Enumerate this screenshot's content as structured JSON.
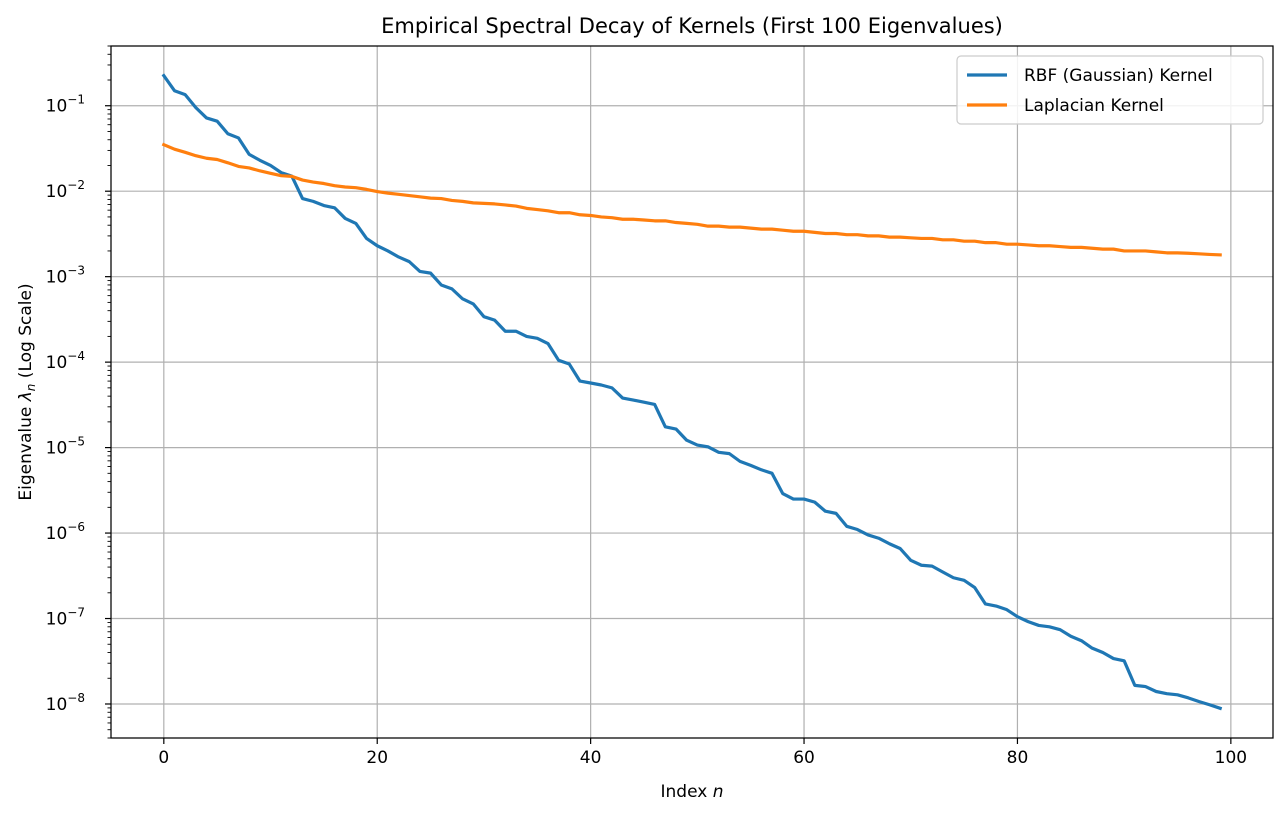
{
  "chart_data": {
    "type": "line",
    "title": "Empirical Spectral Decay of Kernels (First 100 Eigenvalues)",
    "xlabel": "Index n",
    "ylabel": "Eigenvalue λn (Log Scale)",
    "yscale": "log",
    "xlim": [
      -4.95,
      103.95
    ],
    "ylim": [
      4e-09,
      0.5
    ],
    "grid": true,
    "legend_position": "top-right",
    "x_ticks": [
      0,
      20,
      40,
      60,
      80,
      100
    ],
    "x_tick_labels": [
      "0",
      "20",
      "40",
      "60",
      "80",
      "100"
    ],
    "y_tick_exponents": [
      -8,
      -7,
      -6,
      -5,
      -4,
      -3,
      -2,
      -1
    ],
    "y_tick_base": "10",
    "y_tick_labels": [
      "10^-8",
      "10^-7",
      "10^-6",
      "10^-5",
      "10^-4",
      "10^-3",
      "10^-2",
      "10^-1"
    ],
    "series": [
      {
        "name": "RBF (Gaussian) Kernel",
        "color": "#1f77b4",
        "x_start": 0,
        "values": [
          0.225,
          0.15,
          0.135,
          0.095,
          0.072,
          0.066,
          0.047,
          0.042,
          0.027,
          0.023,
          0.02,
          0.0165,
          0.015,
          0.0082,
          0.0076,
          0.0068,
          0.0064,
          0.0048,
          0.0042,
          0.0028,
          0.0023,
          0.002,
          0.0017,
          0.0015,
          0.00115,
          0.0011,
          0.0008,
          0.00072,
          0.00055,
          0.00048,
          0.00034,
          0.00031,
          0.00023,
          0.00023,
          0.0002,
          0.00019,
          0.000165,
          0.000105,
          9.5e-05,
          6e-05,
          5.7e-05,
          5.4e-05,
          5e-05,
          3.8e-05,
          3.6e-05,
          3.4e-05,
          3.2e-05,
          1.75e-05,
          1.65e-05,
          1.22e-05,
          1.07e-05,
          1.02e-05,
          8.8e-06,
          8.5e-06,
          6.9e-06,
          6.2e-06,
          5.5e-06,
          5e-06,
          2.9e-06,
          2.5e-06,
          2.5e-06,
          2.3e-06,
          1.8e-06,
          1.7e-06,
          1.2e-06,
          1.1e-06,
          9.5e-07,
          8.7e-07,
          7.5e-07,
          6.6e-07,
          4.8e-07,
          4.2e-07,
          4.1e-07,
          3.5e-07,
          3e-07,
          2.8e-07,
          2.3e-07,
          1.48e-07,
          1.4e-07,
          1.27e-07,
          1.05e-07,
          9.2e-08,
          8.3e-08,
          8e-08,
          7.4e-08,
          6.2e-08,
          5.5e-08,
          4.5e-08,
          4e-08,
          3.4e-08,
          3.2e-08,
          1.65e-08,
          1.6e-08,
          1.4e-08,
          1.32e-08,
          1.28e-08,
          1.18e-08,
          1.07e-08,
          9.8e-09,
          8.9e-09
        ]
      },
      {
        "name": "Laplacian Kernel",
        "color": "#ff7f0e",
        "x_start": 0,
        "values": [
          0.035,
          0.031,
          0.0285,
          0.026,
          0.0243,
          0.0235,
          0.0215,
          0.0195,
          0.0187,
          0.0173,
          0.0162,
          0.0152,
          0.0149,
          0.0135,
          0.0128,
          0.0123,
          0.0116,
          0.0112,
          0.011,
          0.0105,
          0.0099,
          0.0095,
          0.0092,
          0.0089,
          0.0086,
          0.0083,
          0.0082,
          0.0078,
          0.0076,
          0.0073,
          0.0072,
          0.0071,
          0.0069,
          0.0067,
          0.0063,
          0.0061,
          0.0059,
          0.0056,
          0.0056,
          0.0053,
          0.0052,
          0.005,
          0.0049,
          0.0047,
          0.0047,
          0.0046,
          0.0045,
          0.0045,
          0.0043,
          0.0042,
          0.0041,
          0.0039,
          0.0039,
          0.0038,
          0.0038,
          0.0037,
          0.0036,
          0.0036,
          0.0035,
          0.0034,
          0.0034,
          0.0033,
          0.0032,
          0.0032,
          0.0031,
          0.0031,
          0.003,
          0.003,
          0.0029,
          0.0029,
          0.00285,
          0.0028,
          0.0028,
          0.0027,
          0.0027,
          0.0026,
          0.0026,
          0.0025,
          0.0025,
          0.0024,
          0.0024,
          0.00235,
          0.0023,
          0.0023,
          0.00225,
          0.0022,
          0.0022,
          0.00215,
          0.0021,
          0.0021,
          0.002,
          0.002,
          0.002,
          0.00195,
          0.0019,
          0.0019,
          0.00188,
          0.00185,
          0.00182,
          0.0018
        ]
      }
    ]
  }
}
